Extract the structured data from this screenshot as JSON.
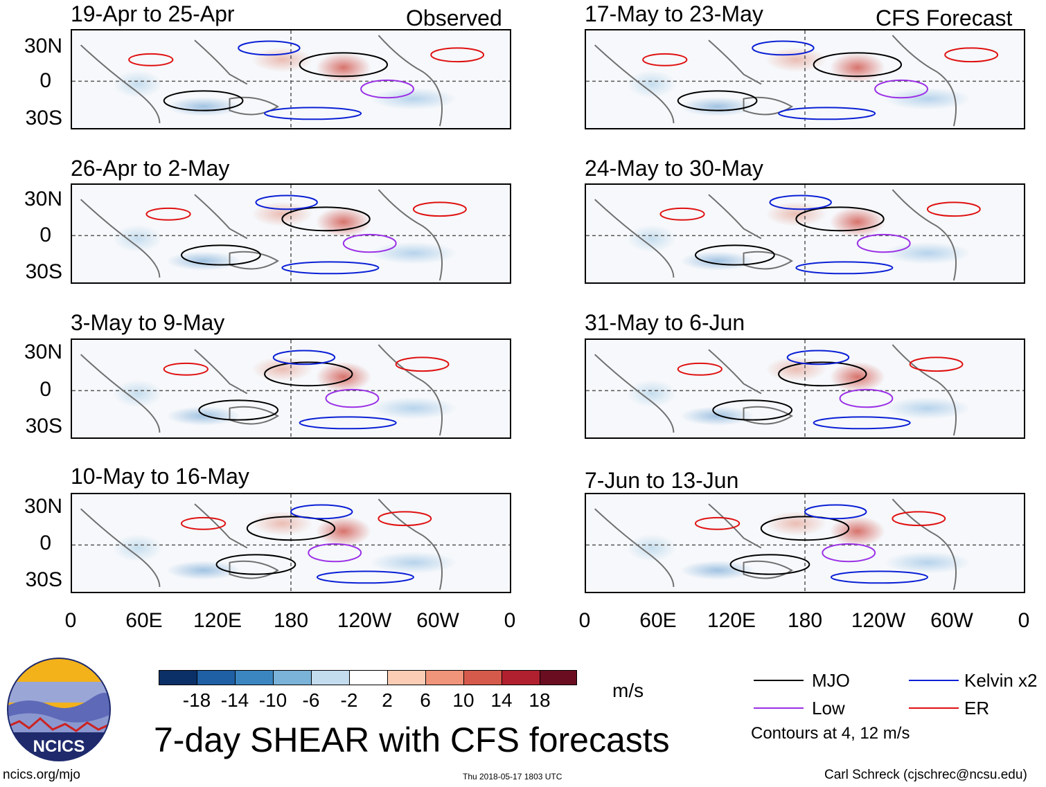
{
  "main_title": "7-day SHEAR with CFS forecasts",
  "observed_label": "Observed",
  "forecast_label": "CFS Forecast",
  "logo_text": "NCICS",
  "url": "ncics.org/mjo",
  "timestamp": "Thu 2018-05-17 1803 UTC",
  "author": "Carl Schreck (cjschrec@ncsu.edu)",
  "units": "m/s",
  "contour_note": "Contours at 4, 12 m/s",
  "lat_labels": [
    "30N",
    "0",
    "30S"
  ],
  "lon_labels": [
    "0",
    "60E",
    "120E",
    "180",
    "120W",
    "60W",
    "0"
  ],
  "observed_panels": [
    {
      "title": "19-Apr to 25-Apr"
    },
    {
      "title": "26-Apr to 2-May"
    },
    {
      "title": "3-May to 9-May"
    },
    {
      "title": "10-May to 16-May"
    }
  ],
  "forecast_panels": [
    {
      "title": "17-May to 23-May"
    },
    {
      "title": "24-May to 30-May"
    },
    {
      "title": "31-May to 6-Jun"
    },
    {
      "title": "7-Jun to 13-Jun"
    }
  ],
  "colorbar": {
    "ticks": [
      "-18",
      "-14",
      "-10",
      "-6",
      "-2",
      "2",
      "6",
      "10",
      "14",
      "18"
    ],
    "colors": [
      "#0b2f67",
      "#1f5fa3",
      "#3b86c1",
      "#7ab2d8",
      "#c3dcee",
      "#ffffff",
      "#fbcdb5",
      "#f0947a",
      "#d65a4b",
      "#b1202e",
      "#6b0d20"
    ]
  },
  "legend": {
    "mjo": {
      "label": "MJO",
      "color": "#000000"
    },
    "kelvin": {
      "label": "Kelvin x2",
      "color": "#0a1fd6"
    },
    "low": {
      "label": "Low",
      "color": "#9b30e6"
    },
    "er": {
      "label": "ER",
      "color": "#e01010"
    }
  }
}
